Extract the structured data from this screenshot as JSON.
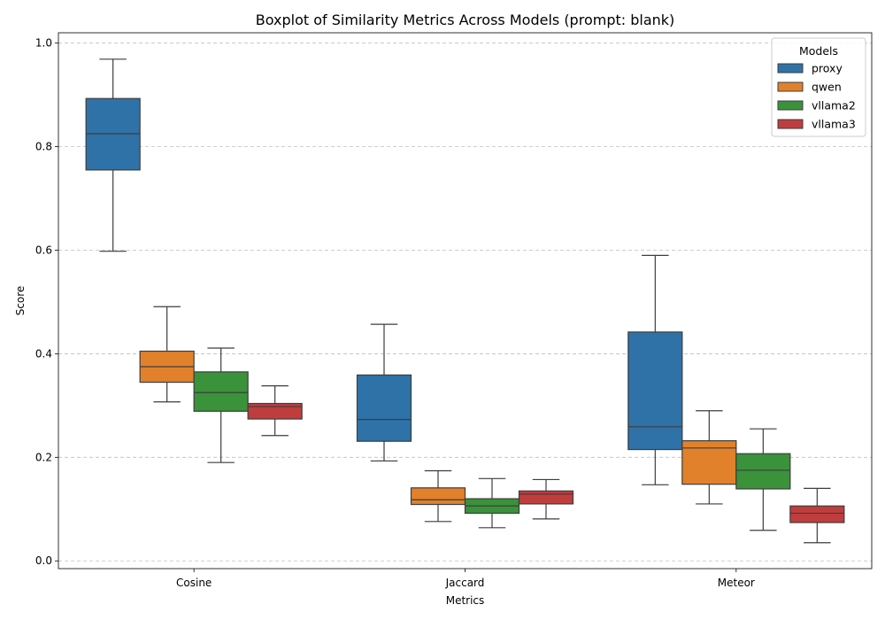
{
  "chart_data": {
    "type": "box",
    "title": "Boxplot of Similarity Metrics Across Models (prompt: blank)",
    "xlabel": "Metrics",
    "ylabel": "Score",
    "categories": [
      "Cosine",
      "Jaccard",
      "Meteor"
    ],
    "ylim": [
      -0.015,
      1.02
    ],
    "yticks": [
      "0.0",
      "0.2",
      "0.4",
      "0.6",
      "0.8",
      "1.0"
    ],
    "grid": "horizontal dashed",
    "legend": {
      "title": "Models",
      "placement": "top-right"
    },
    "series": [
      {
        "name": "proxy",
        "color": "#2f72a8",
        "boxes": [
          {
            "whisker_low": 0.598,
            "q1": 0.755,
            "median": 0.825,
            "q3": 0.893,
            "whisker_high": 0.969
          },
          {
            "whisker_low": 0.193,
            "q1": 0.231,
            "median": 0.273,
            "q3": 0.359,
            "whisker_high": 0.457
          },
          {
            "whisker_low": 0.147,
            "q1": 0.215,
            "median": 0.259,
            "q3": 0.442,
            "whisker_high": 0.59
          }
        ]
      },
      {
        "name": "qwen",
        "color": "#e1812c",
        "boxes": [
          {
            "whisker_low": 0.307,
            "q1": 0.345,
            "median": 0.375,
            "q3": 0.405,
            "whisker_high": 0.491
          },
          {
            "whisker_low": 0.076,
            "q1": 0.109,
            "median": 0.118,
            "q3": 0.141,
            "whisker_high": 0.174
          },
          {
            "whisker_low": 0.11,
            "q1": 0.148,
            "median": 0.218,
            "q3": 0.232,
            "whisker_high": 0.29
          }
        ]
      },
      {
        "name": "vllama2",
        "color": "#3a923a",
        "boxes": [
          {
            "whisker_low": 0.19,
            "q1": 0.289,
            "median": 0.325,
            "q3": 0.365,
            "whisker_high": 0.411
          },
          {
            "whisker_low": 0.064,
            "q1": 0.092,
            "median": 0.106,
            "q3": 0.12,
            "whisker_high": 0.159
          },
          {
            "whisker_low": 0.059,
            "q1": 0.139,
            "median": 0.175,
            "q3": 0.207,
            "whisker_high": 0.255
          }
        ]
      },
      {
        "name": "vllama3",
        "color": "#c03d3e",
        "boxes": [
          {
            "whisker_low": 0.242,
            "q1": 0.274,
            "median": 0.298,
            "q3": 0.304,
            "whisker_high": 0.338
          },
          {
            "whisker_low": 0.081,
            "q1": 0.11,
            "median": 0.129,
            "q3": 0.135,
            "whisker_high": 0.157
          },
          {
            "whisker_low": 0.035,
            "q1": 0.074,
            "median": 0.092,
            "q3": 0.106,
            "whisker_high": 0.14
          }
        ]
      }
    ]
  }
}
